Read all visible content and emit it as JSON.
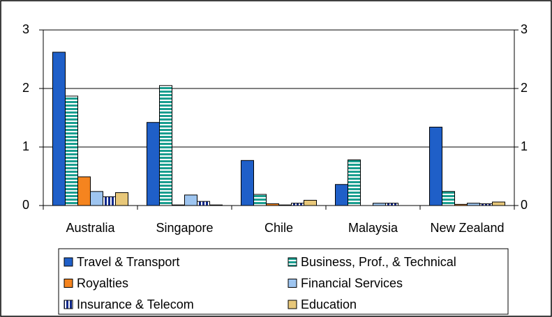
{
  "chart_data": {
    "type": "bar",
    "categories": [
      "Australia",
      "Singapore",
      "Chile",
      "Malaysia",
      "New Zealand"
    ],
    "series": [
      {
        "name": "Travel & Transport",
        "color": "#1f5fc8",
        "values": [
          2.62,
          1.42,
          0.77,
          0.36,
          1.34
        ]
      },
      {
        "name": "Business, Prof., & Technical",
        "color": "#1a9e8f",
        "hatch": "horizontal",
        "values": [
          1.87,
          2.05,
          0.19,
          0.78,
          0.24
        ]
      },
      {
        "name": "Royalties",
        "color": "#f5841f",
        "values": [
          0.49,
          0.01,
          0.03,
          0.0,
          0.02
        ]
      },
      {
        "name": "Financial Services",
        "color": "#9ec5f0",
        "values": [
          0.24,
          0.18,
          0.01,
          0.04,
          0.04
        ]
      },
      {
        "name": "Insurance & Telecom",
        "color": "#102a8c",
        "hatch": "vertical",
        "values": [
          0.15,
          0.07,
          0.04,
          0.04,
          0.03
        ]
      },
      {
        "name": "Education",
        "color": "#e8c87a",
        "values": [
          0.22,
          0.01,
          0.09,
          0.0,
          0.06
        ]
      }
    ],
    "ylim": [
      0,
      3
    ],
    "yticks": [
      0,
      1,
      2,
      3
    ],
    "y2lim": [
      0,
      3
    ],
    "y2ticks": [
      0,
      1,
      2,
      3
    ],
    "grid": true,
    "legend": "bottom"
  }
}
